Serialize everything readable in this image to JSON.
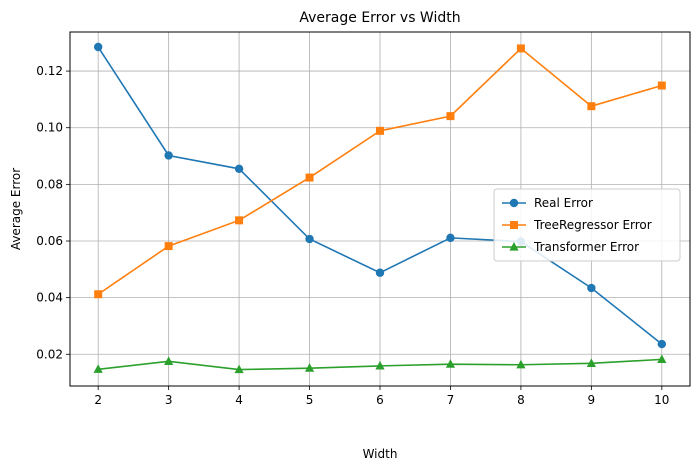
{
  "chart_data": {
    "type": "line",
    "title": "Average Error vs Width",
    "xlabel": "Width",
    "ylabel": "Average Error",
    "x": [
      2,
      3,
      4,
      5,
      6,
      7,
      8,
      9,
      10
    ],
    "xlim": [
      1.6,
      10.4
    ],
    "ylim": [
      0.0088,
      0.1338
    ],
    "xticks": [
      2,
      3,
      4,
      5,
      6,
      7,
      8,
      9,
      10
    ],
    "yticks": [
      0.02,
      0.04,
      0.06,
      0.08,
      0.1,
      0.12
    ],
    "ytick_labels": [
      "0.02",
      "0.04",
      "0.06",
      "0.08",
      "0.10",
      "0.12"
    ],
    "grid": true,
    "legend_position": "center-right",
    "series": [
      {
        "name": "Real Error",
        "color": "#1f77b4",
        "marker": "circle",
        "values": [
          0.1285,
          0.0902,
          0.0855,
          0.0607,
          0.0488,
          0.0611,
          0.0598,
          0.0434,
          0.0236
        ]
      },
      {
        "name": "TreeRegressor Error",
        "color": "#ff7f0e",
        "marker": "square",
        "values": [
          0.0412,
          0.0582,
          0.0673,
          0.0824,
          0.0989,
          0.1041,
          0.128,
          0.1076,
          0.1149
        ]
      },
      {
        "name": "Transformer Error",
        "color": "#2ca02c",
        "marker": "triangle",
        "values": [
          0.0147,
          0.0175,
          0.0146,
          0.0151,
          0.0159,
          0.0165,
          0.0163,
          0.0168,
          0.0182
        ]
      }
    ]
  }
}
